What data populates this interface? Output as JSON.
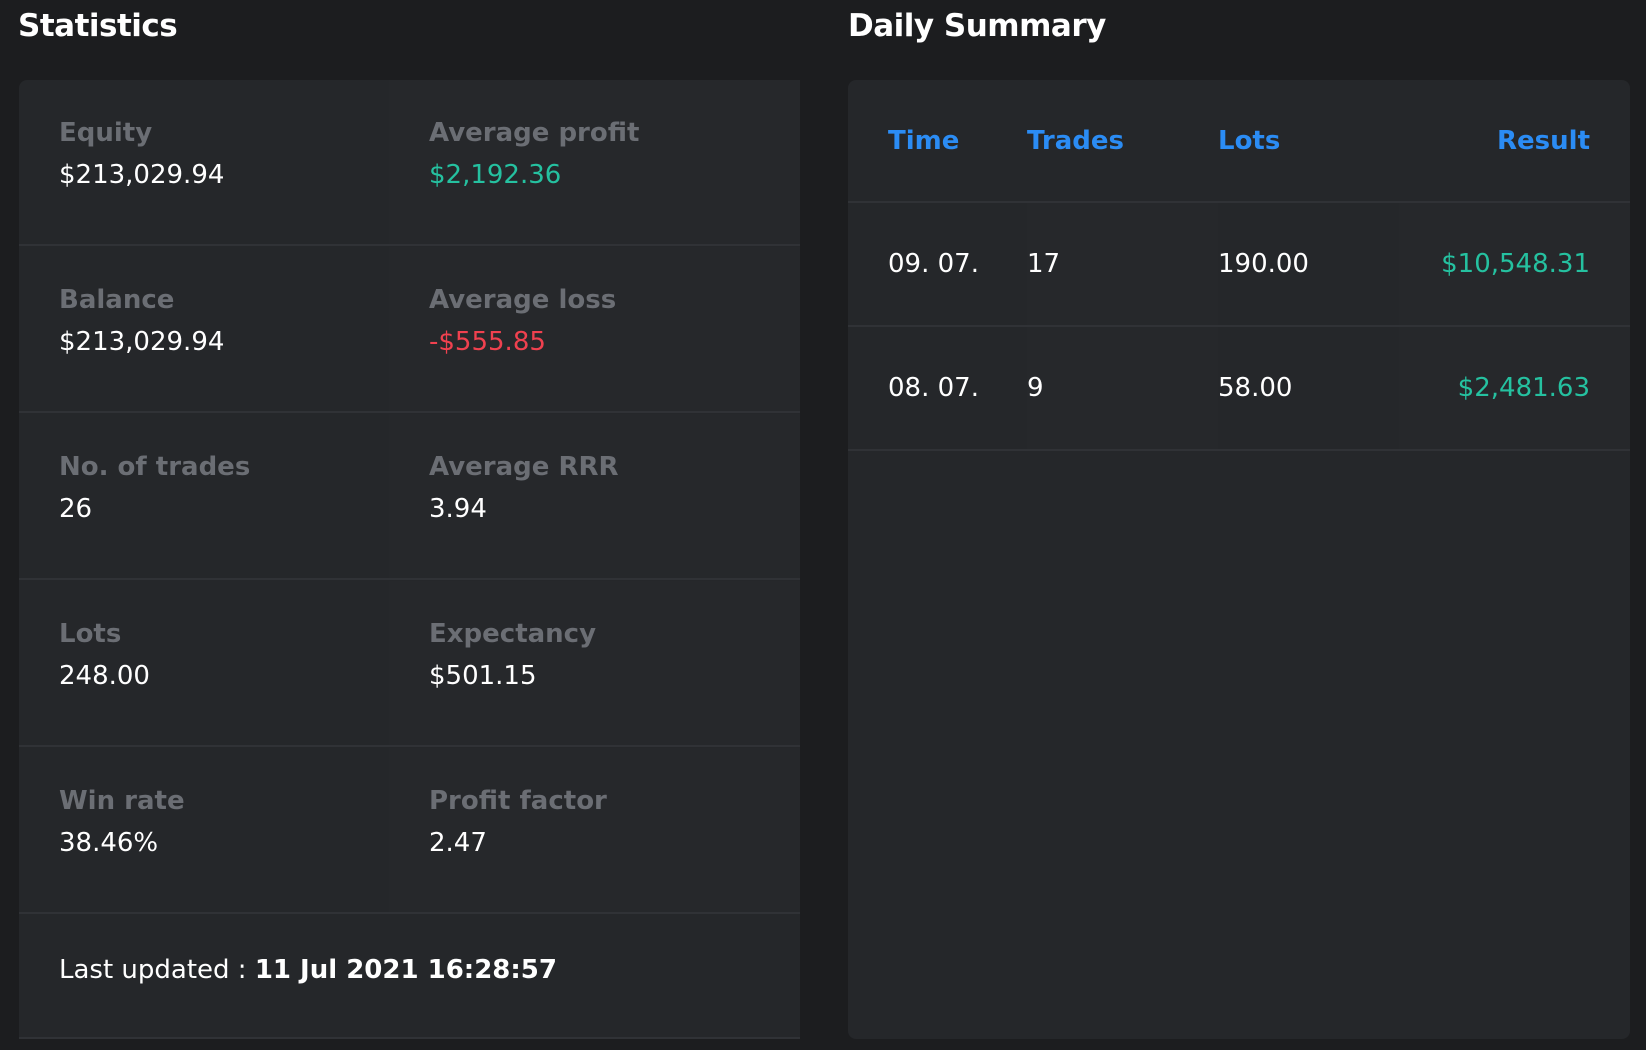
{
  "statistics": {
    "title": "Statistics",
    "rows": [
      [
        {
          "label": "Equity",
          "value": "$213,029.94"
        },
        {
          "label": "Average profit",
          "value": "$2,192.36",
          "tone": "positive"
        }
      ],
      [
        {
          "label": "Balance",
          "value": "$213,029.94"
        },
        {
          "label": "Average loss",
          "value": "-$555.85",
          "tone": "negative"
        }
      ],
      [
        {
          "label": "No. of trades",
          "value": "26"
        },
        {
          "label": "Average RRR",
          "value": "3.94"
        }
      ],
      [
        {
          "label": "Lots",
          "value": "248.00"
        },
        {
          "label": "Expectancy",
          "value": "$501.15"
        }
      ],
      [
        {
          "label": "Win rate",
          "value": "38.46%"
        },
        {
          "label": "Profit factor",
          "value": "2.47"
        }
      ]
    ],
    "last_updated_label": "Last updated : ",
    "last_updated_value": "11 Jul 2021 16:28:57"
  },
  "daily_summary": {
    "title": "Daily Summary",
    "columns": [
      "Time",
      "Trades",
      "Lots",
      "Result"
    ],
    "rows": [
      [
        "09. 07.",
        "17",
        "190.00",
        "$10,548.31"
      ],
      [
        "08. 07.",
        "9",
        "58.00",
        "$2,481.63"
      ]
    ]
  },
  "colors": {
    "positive": "#25c1a0",
    "negative": "#f0414f",
    "header": "#2b8cf4",
    "label": "#6b6e74",
    "background": "#1c1d1f",
    "panel": "#25272a"
  }
}
